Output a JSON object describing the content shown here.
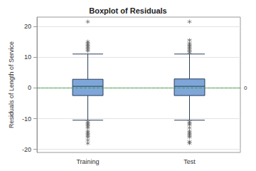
{
  "chart_data": {
    "type": "boxplot",
    "title": "Boxplot of Residuals",
    "ylabel": "Residuals of Length of Service",
    "categories": [
      "Training",
      "Test"
    ],
    "boxes": [
      [
        -10.5,
        -2.5,
        0.5,
        2.8,
        11
      ],
      [
        -10.5,
        -2.5,
        0.5,
        2.9,
        11
      ]
    ],
    "outliers": [
      [
        12,
        12.5,
        13,
        13.5,
        14,
        14.5,
        15,
        21.5,
        -11,
        -11.5,
        -12,
        -12.5,
        -13,
        -14,
        -14.5,
        -15,
        -15.5,
        -16,
        -17,
        -18
      ],
      [
        11.5,
        12,
        12.5,
        13,
        13.5,
        14,
        14.5,
        15.5,
        21.5,
        -11,
        -11.5,
        -12,
        -13,
        -14,
        -14.5,
        -15,
        -15.5,
        -16,
        -17.5,
        -18
      ]
    ],
    "color": "#7fa6d9",
    "marker": "asterisk",
    "reference_line": {
      "value": 0,
      "color": "#3aa64a",
      "line_style": "dashed"
    },
    "ylim": [
      -21,
      23
    ],
    "yticks": [
      -20,
      -10,
      0,
      10,
      20
    ],
    "grid": true
  }
}
